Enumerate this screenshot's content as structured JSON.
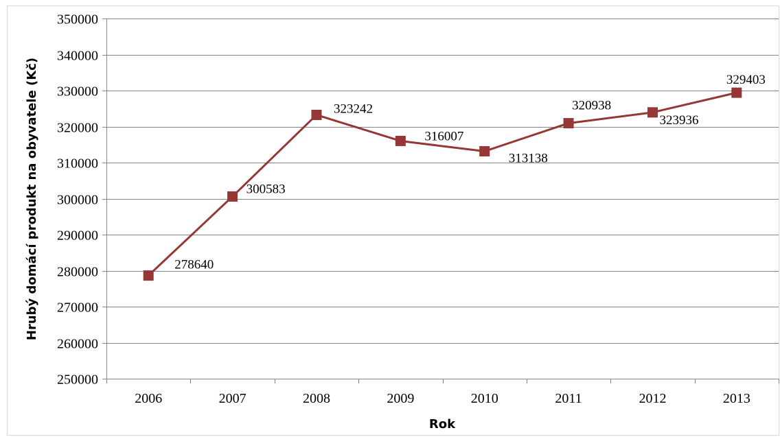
{
  "chart_data": {
    "type": "line",
    "title": "",
    "xlabel": "Rok",
    "ylabel": "Hrubý domácí produkt na obyvatele (Kč)",
    "categories": [
      "2006",
      "2007",
      "2008",
      "2009",
      "2010",
      "2011",
      "2012",
      "2013"
    ],
    "series": [
      {
        "values": [
          278640,
          300583,
          323242,
          316007,
          313138,
          320938,
          323936,
          329403
        ],
        "data_labels": [
          "278640",
          "300583",
          "323242",
          "316007",
          "313138",
          "320938",
          "323936",
          "329403"
        ],
        "color": "#953735",
        "marker": "square"
      }
    ],
    "ylim": [
      250000,
      350000
    ],
    "yticks": [
      "250000",
      "260000",
      "270000",
      "280000",
      "290000",
      "300000",
      "310000",
      "320000",
      "330000",
      "340000",
      "350000"
    ],
    "grid": "horizontal",
    "legend": "none"
  }
}
